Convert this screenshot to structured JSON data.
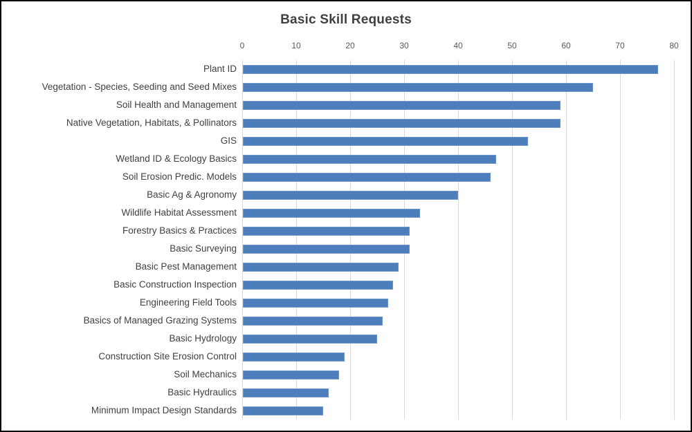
{
  "chart_data": {
    "type": "bar",
    "orientation": "horizontal",
    "title": "Basic Skill Requests",
    "categories": [
      "Plant ID",
      "Vegetation - Species, Seeding and Seed Mixes",
      "Soil Health and Management",
      "Native Vegetation, Habitats, & Pollinators",
      "GIS",
      "Wetland ID & Ecology Basics",
      "Soil Erosion Predic. Models",
      "Basic Ag & Agronomy",
      "Wildlife Habitat Assessment",
      "Forestry Basics & Practices",
      "Basic Surveying",
      "Basic Pest Management",
      "Basic Construction Inspection",
      "Engineering Field Tools",
      "Basics of Managed Grazing Systems",
      "Basic Hydrology",
      "Construction Site Erosion Control",
      "Soil Mechanics",
      "Basic Hydraulics",
      "Minimum Impact Design Standards"
    ],
    "values": [
      77,
      65,
      59,
      59,
      53,
      47,
      46,
      40,
      33,
      31,
      31,
      29,
      28,
      27,
      26,
      25,
      19,
      18,
      16,
      15
    ],
    "xlabel": "",
    "ylabel": "",
    "xlim": [
      0,
      80
    ],
    "x_ticks": [
      0,
      10,
      20,
      30,
      40,
      50,
      60,
      70,
      80
    ],
    "axis_position": "top",
    "grid": "vertical",
    "legend": "none",
    "colors": {
      "bar_fill": "#4d7ebb",
      "gridline": "#d9d9d9",
      "title_text": "#404040",
      "category_text": "#404040",
      "tick_text": "#595959",
      "background": "#ffffff",
      "frame_border": "#000000"
    }
  }
}
